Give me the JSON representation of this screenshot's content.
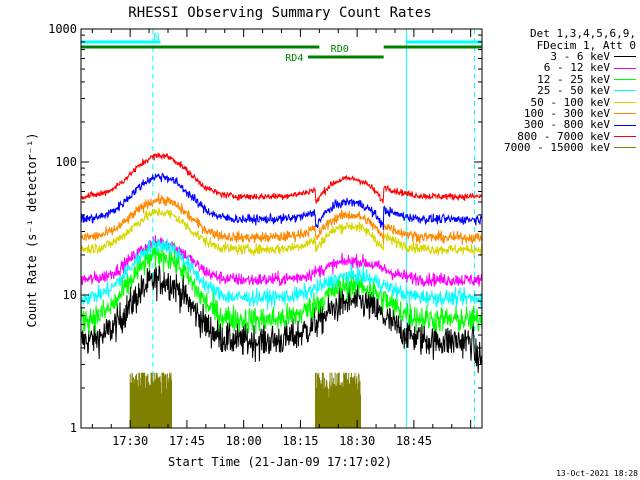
{
  "chart_data": {
    "type": "line",
    "title": "RHESSI Observing Summary Count Rates",
    "xlabel": "Start Time (21-Jan-09 17:17:02)",
    "ylabel": "Count Rate (s⁻¹ detector⁻¹)",
    "y_scale": "log",
    "ylim": [
      1,
      1000
    ],
    "xlim_minutes": [
      0,
      106
    ],
    "x_ticks": [
      "17:30",
      "17:45",
      "18:00",
      "18:15",
      "18:30",
      "18:45"
    ],
    "y_ticks": [
      "1",
      "10",
      "100",
      "1000"
    ],
    "grid": false,
    "legend_position": "right",
    "legend_header": [
      "Det 1,3,4,5,6,9,",
      "FDecim 1, Att 0"
    ],
    "series": [
      {
        "name": "3 - 6 keV",
        "color": "#000000",
        "base": 4.5,
        "peak1": 13,
        "peak2": 9,
        "noise": 0.25
      },
      {
        "name": "6 - 12 keV",
        "color": "#ff00ff",
        "base": 13,
        "peak1": 25,
        "peak2": 18,
        "noise": 0.1
      },
      {
        "name": "12 - 25 keV",
        "color": "#00ff00",
        "base": 6.5,
        "peak1": 20,
        "peak2": 12,
        "noise": 0.2
      },
      {
        "name": "25 - 50 keV",
        "color": "#00ffff",
        "base": 9.5,
        "peak1": 24,
        "peak2": 14,
        "noise": 0.12
      },
      {
        "name": "50 - 100 keV",
        "color": "#d7d700",
        "base": 22,
        "peak1": 42,
        "peak2": 33,
        "noise": 0.08
      },
      {
        "name": "100 - 300 keV",
        "color": "#ff8800",
        "base": 27,
        "peak1": 52,
        "peak2": 40,
        "noise": 0.08
      },
      {
        "name": "300 - 800 keV",
        "color": "#0000ff",
        "base": 37,
        "peak1": 78,
        "peak2": 50,
        "noise": 0.07
      },
      {
        "name": "800 - 7000 keV",
        "color": "#ff0000",
        "base": 55,
        "peak1": 112,
        "peak2": 75,
        "noise": 0.05
      },
      {
        "name": "7000 - 15000 keV",
        "color": "#808000",
        "base": 2.2,
        "peak1": 2.6,
        "peak2": 2.4,
        "noise": 0.15
      }
    ],
    "flags": [
      {
        "label": "N",
        "color": "#00ffff"
      },
      {
        "label": "RD0",
        "color": "#008000"
      },
      {
        "label": "RD4",
        "color": "#008000"
      }
    ]
  },
  "footer": {
    "timestamp": "13-Oct-2021 18:28"
  }
}
